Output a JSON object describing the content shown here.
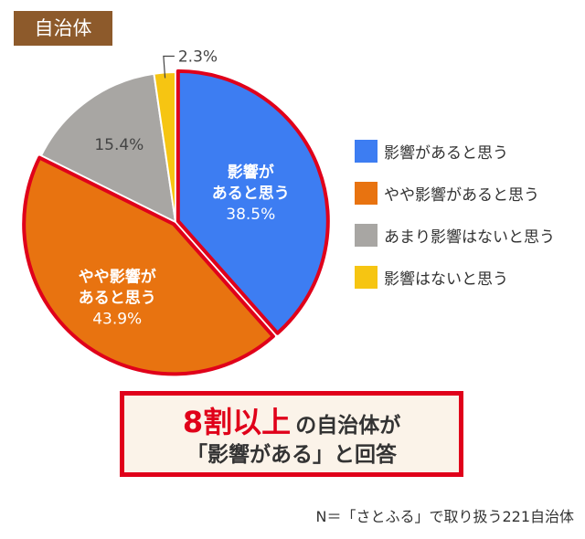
{
  "tag": "自治体",
  "chart_data": {
    "type": "pie",
    "categories": [
      "影響があると思う",
      "やや影響があると思う",
      "あまり影響はないと思う",
      "影響はないと思う"
    ],
    "values": [
      38.5,
      43.9,
      15.4,
      2.3
    ],
    "value_labels": [
      "38.5%",
      "43.9%",
      "15.4%",
      "2.3%"
    ],
    "slice_labels": [
      [
        "影響が",
        "あると思う"
      ],
      [
        "やや影響が",
        "あると思う"
      ],
      [],
      []
    ],
    "colors": [
      "#3d7df2",
      "#e87310",
      "#a8a6a3",
      "#f6c512"
    ],
    "highlight_color": "#e0001a",
    "legend_position": "right"
  },
  "callout": {
    "highlight": "8割以上",
    "line1_rest": "の自治体が",
    "line2": "「影響がある」と回答"
  },
  "footnote": "N＝「さとふる」で取り扱う221自治体"
}
